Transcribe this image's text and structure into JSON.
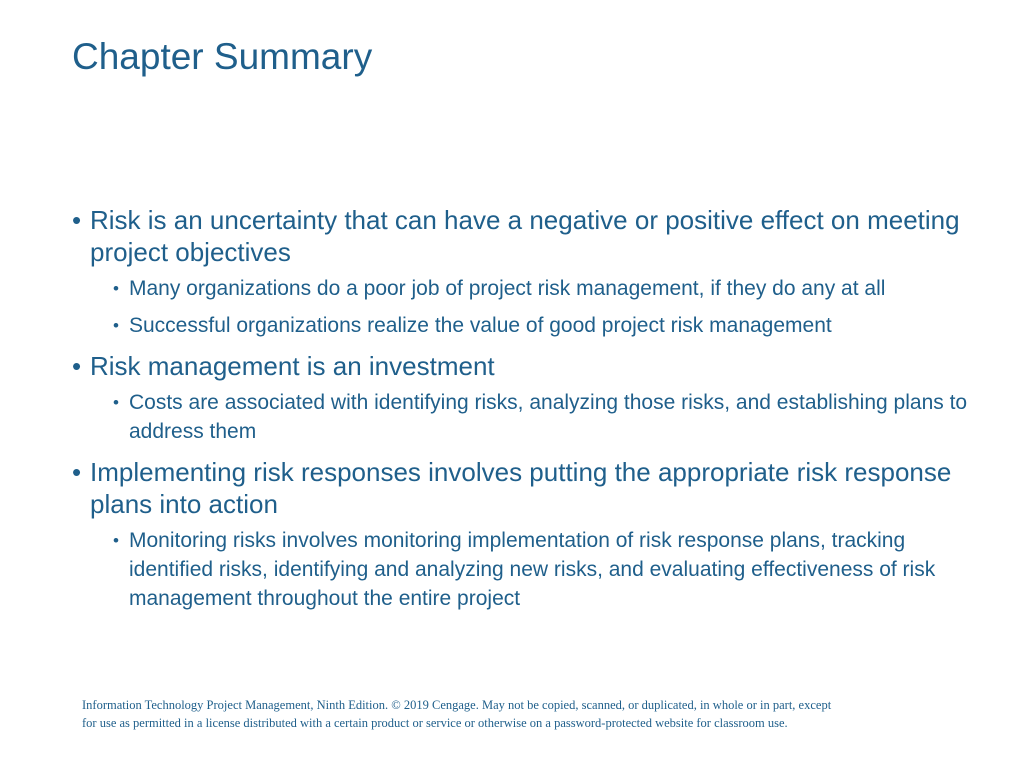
{
  "slide": {
    "title": "Chapter Summary",
    "bullets": [
      {
        "text": "Risk is an uncertainty that can have a negative or positive effect on meeting project objectives",
        "sub": [
          "Many organizations do a poor job of project risk management, if they do any at all",
          "Successful organizations realize the value of good project risk management"
        ]
      },
      {
        "text": "Risk management is an investment",
        "sub": [
          "Costs are associated with identifying risks, analyzing those risks, and establishing plans to address them"
        ]
      },
      {
        "text": "Implementing risk responses involves putting the appropriate risk response plans into action",
        "sub": [
          "Monitoring risks involves monitoring implementation of risk response plans, tracking identified risks, identifying and analyzing new risks, and evaluating effectiveness of risk management throughout the entire project"
        ]
      }
    ],
    "footer_line1": "Information Technology Project Management, Ninth Edition. © 2019 Cengage. May not be copied, scanned, or duplicated, in whole or in part, except",
    "footer_line2": "for use as permitted in a license distributed with a certain product or service or otherwise on a password-protected website for classroom use.",
    "bullet_char": "•",
    "colors": {
      "text": "#1f5f8b",
      "background": "#ffffff"
    }
  }
}
